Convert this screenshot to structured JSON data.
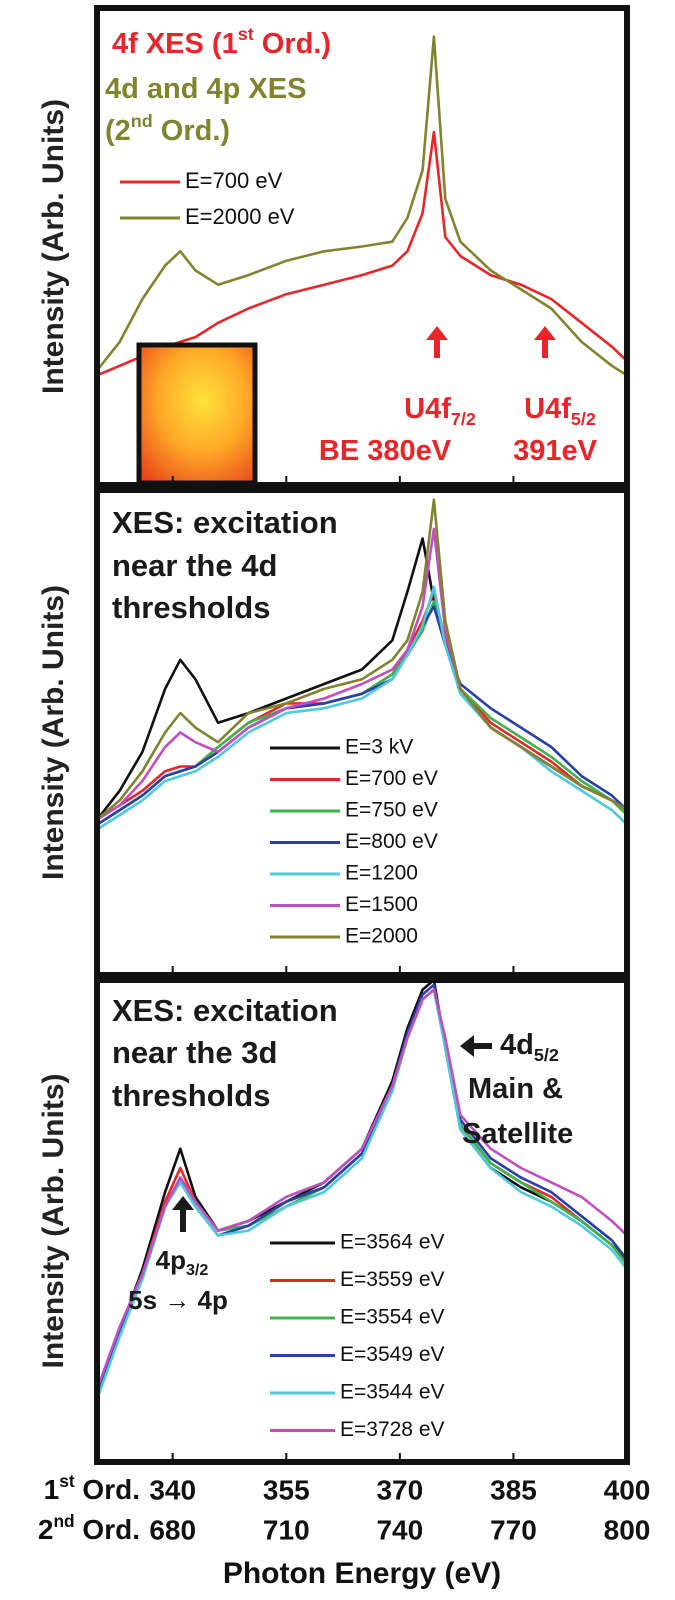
{
  "chart_data": [
    {
      "type": "line",
      "ylabel": "Intensity (Arb. Units)",
      "xlim": [
        330,
        400
      ],
      "ylim": [
        0,
        1
      ],
      "xticks": [
        340,
        355,
        370,
        385,
        400
      ],
      "x": [
        330,
        333,
        336,
        339,
        341,
        343,
        346,
        350,
        355,
        360,
        365,
        369,
        371,
        373,
        374.5,
        376,
        378,
        382,
        386,
        390,
        394,
        398,
        400
      ],
      "series": [
        {
          "name": "E=700 eV",
          "color": "#e8262a",
          "values": [
            0.23,
            0.25,
            0.27,
            0.29,
            0.3,
            0.31,
            0.34,
            0.37,
            0.4,
            0.42,
            0.44,
            0.46,
            0.49,
            0.57,
            0.74,
            0.52,
            0.48,
            0.44,
            0.42,
            0.39,
            0.34,
            0.29,
            0.26
          ]
        },
        {
          "name": "E=2000 eV",
          "color": "#80842e",
          "values": [
            0.24,
            0.3,
            0.39,
            0.46,
            0.49,
            0.45,
            0.42,
            0.44,
            0.47,
            0.49,
            0.5,
            0.51,
            0.56,
            0.66,
            0.94,
            0.6,
            0.51,
            0.45,
            0.41,
            0.37,
            0.3,
            0.25,
            0.23
          ]
        }
      ],
      "annotations": [
        {
          "color": "#e8262a",
          "segments": [
            {
              "text": "4f XES (1"
            },
            {
              "text": "st",
              "sup": true
            },
            {
              "text": " Ord.)"
            }
          ]
        },
        {
          "color": "#80842e",
          "segments": [
            {
              "text": "4d and 4p XES"
            }
          ]
        },
        {
          "color": "#80842e",
          "segments": [
            {
              "text": "(2"
            },
            {
              "text": "nd",
              "sup": true
            },
            {
              "text": " Ord.)"
            }
          ]
        },
        {
          "color": "#e8262a",
          "segments": [
            {
              "text": "U4f"
            },
            {
              "text": "7/2",
              "sub": true
            }
          ]
        },
        {
          "color": "#e8262a",
          "segments": [
            {
              "text": "BE 380eV"
            }
          ]
        },
        {
          "color": "#e8262a",
          "segments": [
            {
              "text": "U4f"
            },
            {
              "text": "5/2",
              "sub": true
            }
          ]
        },
        {
          "color": "#e8262a",
          "segments": [
            {
              "text": "391eV"
            }
          ]
        }
      ]
    },
    {
      "type": "line",
      "ylabel": "Intensity (Arb. Units)",
      "xlim": [
        330,
        400
      ],
      "ylim": [
        0,
        1
      ],
      "xticks": [
        340,
        355,
        370,
        385,
        400
      ],
      "x": [
        330,
        333,
        336,
        339,
        341,
        343,
        346,
        350,
        355,
        360,
        365,
        369,
        371,
        373,
        374.5,
        376,
        378,
        382,
        386,
        390,
        394,
        398,
        400
      ],
      "series": [
        {
          "name": "E=3 kV",
          "color": "#111111",
          "values": [
            0.32,
            0.38,
            0.46,
            0.59,
            0.65,
            0.61,
            0.52,
            0.54,
            0.57,
            0.6,
            0.63,
            0.69,
            0.79,
            0.9,
            0.77,
            0.69,
            0.59,
            0.51,
            0.47,
            0.43,
            0.39,
            0.36,
            0.34
          ]
        },
        {
          "name": "E=700 eV",
          "color": "#e8262a",
          "values": [
            0.32,
            0.35,
            0.38,
            0.42,
            0.43,
            0.43,
            0.47,
            0.52,
            0.56,
            0.56,
            0.58,
            0.62,
            0.67,
            0.73,
            0.79,
            0.69,
            0.59,
            0.52,
            0.48,
            0.44,
            0.39,
            0.36,
            0.34
          ]
        },
        {
          "name": "E=750 eV",
          "color": "#3cb44b",
          "values": [
            0.31,
            0.34,
            0.37,
            0.41,
            0.42,
            0.43,
            0.47,
            0.52,
            0.55,
            0.56,
            0.58,
            0.62,
            0.66,
            0.71,
            0.77,
            0.68,
            0.59,
            0.53,
            0.49,
            0.45,
            0.4,
            0.36,
            0.33
          ]
        },
        {
          "name": "E=800 eV",
          "color": "#2a3fa8",
          "values": [
            0.31,
            0.34,
            0.37,
            0.41,
            0.42,
            0.43,
            0.46,
            0.51,
            0.55,
            0.56,
            0.58,
            0.61,
            0.66,
            0.72,
            0.76,
            0.68,
            0.6,
            0.55,
            0.51,
            0.47,
            0.41,
            0.37,
            0.34
          ]
        },
        {
          "name": "E=1200",
          "color": "#4ec9d9",
          "values": [
            0.3,
            0.33,
            0.36,
            0.4,
            0.41,
            0.42,
            0.45,
            0.5,
            0.54,
            0.55,
            0.57,
            0.61,
            0.66,
            0.72,
            0.8,
            0.68,
            0.58,
            0.51,
            0.47,
            0.42,
            0.38,
            0.34,
            0.31
          ]
        },
        {
          "name": "E=1500",
          "color": "#c04fc0",
          "values": [
            0.32,
            0.35,
            0.4,
            0.47,
            0.5,
            0.48,
            0.46,
            0.51,
            0.55,
            0.57,
            0.6,
            0.63,
            0.67,
            0.76,
            0.92,
            0.71,
            0.59,
            0.51,
            0.47,
            0.43,
            0.39,
            0.36,
            0.34
          ]
        },
        {
          "name": "E=2000",
          "color": "#80842e",
          "values": [
            0.32,
            0.36,
            0.42,
            0.5,
            0.54,
            0.51,
            0.48,
            0.54,
            0.56,
            0.59,
            0.61,
            0.65,
            0.69,
            0.79,
            0.98,
            0.73,
            0.59,
            0.51,
            0.47,
            0.43,
            0.39,
            0.36,
            0.34
          ]
        }
      ],
      "annotations": [
        {
          "color": "#1a1a1a",
          "segments": [
            {
              "text": "XES: excitation"
            }
          ]
        },
        {
          "color": "#1a1a1a",
          "segments": [
            {
              "text": "near the 4d"
            }
          ]
        },
        {
          "color": "#1a1a1a",
          "segments": [
            {
              "text": "thresholds"
            }
          ]
        }
      ]
    },
    {
      "type": "line",
      "ylabel": "Intensity (Arb. Units)",
      "xlabel": "Photon Energy (eV)",
      "xlim": [
        330,
        400
      ],
      "ylim": [
        0,
        1
      ],
      "xticks": [
        340,
        355,
        370,
        385,
        400
      ],
      "xtick_prefix": [
        {
          "text": "1"
        },
        {
          "text": "st",
          "sup": true
        },
        {
          "text": " Ord."
        }
      ],
      "x2lim": [
        660,
        800
      ],
      "x2ticks": [
        680,
        710,
        740,
        770,
        800
      ],
      "x2tick_prefix": [
        {
          "text": "2"
        },
        {
          "text": "nd",
          "sup": true
        },
        {
          "text": " Ord."
        }
      ],
      "x": [
        330,
        333,
        336,
        339,
        341,
        343,
        346,
        350,
        355,
        360,
        365,
        369,
        371,
        373,
        374.5,
        376,
        378,
        382,
        386,
        390,
        394,
        398,
        400
      ],
      "series": [
        {
          "name": "E=3564 eV",
          "color": "#111111",
          "values": [
            0.13,
            0.27,
            0.4,
            0.56,
            0.65,
            0.55,
            0.48,
            0.5,
            0.54,
            0.58,
            0.65,
            0.79,
            0.9,
            0.98,
            1.0,
            0.86,
            0.69,
            0.61,
            0.57,
            0.54,
            0.5,
            0.45,
            0.42
          ]
        },
        {
          "name": "E=3559 eV",
          "color": "#e8262a",
          "values": [
            0.14,
            0.27,
            0.39,
            0.54,
            0.61,
            0.54,
            0.48,
            0.49,
            0.54,
            0.57,
            0.64,
            0.78,
            0.88,
            0.96,
            0.98,
            0.87,
            0.7,
            0.62,
            0.58,
            0.55,
            0.5,
            0.45,
            0.41
          ]
        },
        {
          "name": "E=3554 eV",
          "color": "#3cb44b",
          "values": [
            0.14,
            0.28,
            0.39,
            0.53,
            0.59,
            0.54,
            0.48,
            0.49,
            0.53,
            0.57,
            0.64,
            0.77,
            0.88,
            0.96,
            0.98,
            0.86,
            0.7,
            0.62,
            0.58,
            0.54,
            0.5,
            0.45,
            0.41
          ]
        },
        {
          "name": "E=3549 eV",
          "color": "#2a3fa8",
          "values": [
            0.14,
            0.27,
            0.38,
            0.53,
            0.59,
            0.53,
            0.47,
            0.49,
            0.54,
            0.57,
            0.64,
            0.78,
            0.89,
            0.97,
            0.99,
            0.87,
            0.71,
            0.63,
            0.59,
            0.56,
            0.51,
            0.46,
            0.42
          ]
        },
        {
          "name": "E=3544 eV",
          "color": "#4ec9d9",
          "values": [
            0.13,
            0.26,
            0.38,
            0.53,
            0.58,
            0.53,
            0.47,
            0.48,
            0.53,
            0.56,
            0.63,
            0.77,
            0.88,
            0.96,
            0.98,
            0.86,
            0.69,
            0.61,
            0.56,
            0.53,
            0.49,
            0.44,
            0.4
          ]
        },
        {
          "name": "E=3728 eV",
          "color": "#c04fc0",
          "values": [
            0.15,
            0.28,
            0.39,
            0.53,
            0.59,
            0.54,
            0.48,
            0.5,
            0.55,
            0.58,
            0.65,
            0.78,
            0.88,
            0.96,
            0.98,
            0.88,
            0.72,
            0.65,
            0.61,
            0.58,
            0.55,
            0.5,
            0.47
          ]
        }
      ],
      "annotations": [
        {
          "color": "#1a1a1a",
          "segments": [
            {
              "text": "XES: excitation"
            }
          ]
        },
        {
          "color": "#1a1a1a",
          "segments": [
            {
              "text": "near the 3d"
            }
          ]
        },
        {
          "color": "#1a1a1a",
          "segments": [
            {
              "text": "thresholds"
            }
          ]
        },
        {
          "color": "#1a1a1a",
          "segments": [
            {
              "text": "4d"
            },
            {
              "text": "5/2",
              "sub": true
            }
          ]
        },
        {
          "color": "#1a1a1a",
          "segments": [
            {
              "text": "Main &"
            }
          ]
        },
        {
          "color": "#1a1a1a",
          "segments": [
            {
              "text": "Satellite"
            }
          ]
        },
        {
          "color": "#1a1a1a",
          "segments": [
            {
              "text": "4p"
            },
            {
              "text": "3/2",
              "sub": true
            }
          ]
        },
        {
          "color": "#1a1a1a",
          "segments": [
            {
              "text": "5s → 4p"
            }
          ]
        }
      ]
    }
  ]
}
